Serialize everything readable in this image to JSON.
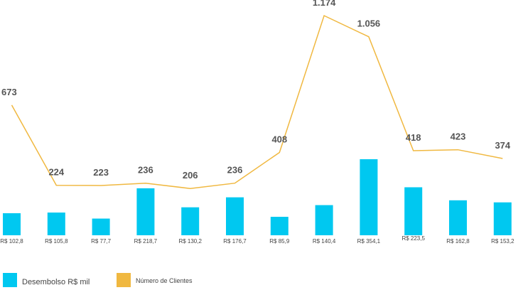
{
  "chart_data": {
    "type": "bar",
    "categories": [
      "",
      "",
      "",
      "",
      "",
      "",
      "",
      "",
      "",
      "",
      "",
      ""
    ],
    "series": [
      {
        "name": "Desembolso R$ mil",
        "type": "bar",
        "color": "#00c8f0",
        "values": [
          102.8,
          105.8,
          77.7,
          218.7,
          130.2,
          176.7,
          85.9,
          140.4,
          354.1,
          223.5,
          162.8,
          153.2
        ],
        "labels": [
          "R$ 102,8",
          "R$ 105,8",
          "R$ 77,7",
          "R$ 218,7",
          "R$ 130,2",
          "R$ 176,7",
          "R$ 85,9",
          "R$ 140,4",
          "R$ 354,1",
          "R$ 223,5",
          "R$ 162,8",
          "R$ 153,2"
        ]
      },
      {
        "name": "Número de Clientes",
        "type": "line",
        "color": "#f0b840",
        "values": [
          673,
          224,
          223,
          236,
          206,
          236,
          408,
          1174,
          1056,
          418,
          423,
          374
        ],
        "labels": [
          "673",
          "224",
          "223",
          "236",
          "206",
          "236",
          "408",
          "1.174",
          "1.056",
          "418",
          "423",
          "374"
        ]
      }
    ],
    "legend": "bottom-left",
    "grid": false,
    "title": "",
    "xlabel": "",
    "ylabel": ""
  },
  "legend": {
    "bar_label": "Desembolso R$ mil",
    "line_label": "Número de Clientes"
  }
}
